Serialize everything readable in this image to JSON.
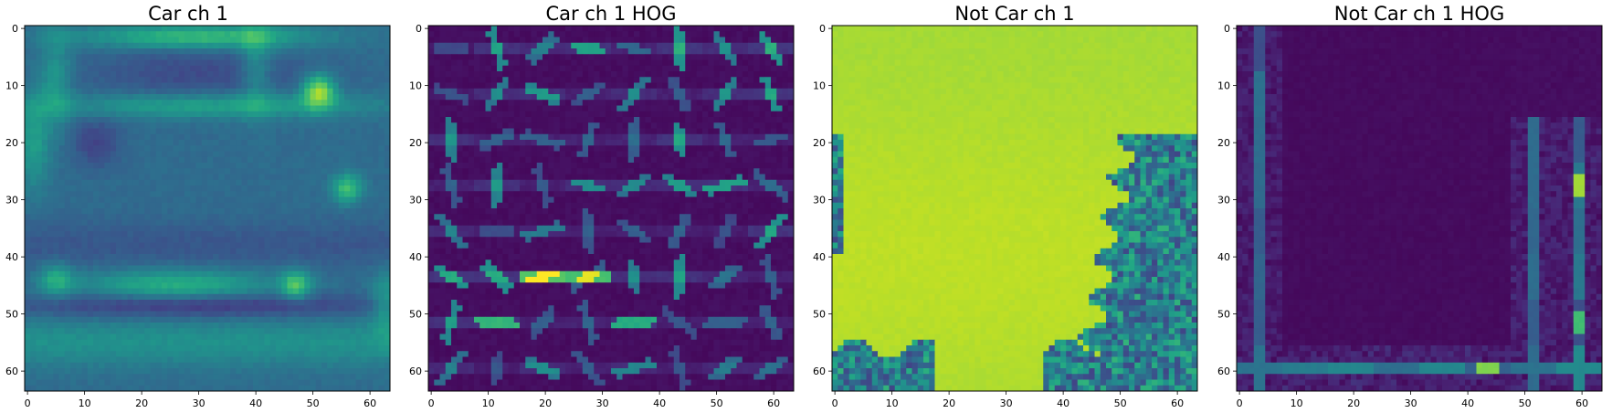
{
  "chart_data": [
    {
      "type": "heatmap",
      "title": "Car ch 1",
      "colormap": "viridis",
      "xlim": [
        0,
        63
      ],
      "ylim": [
        63,
        0
      ],
      "xticks": [
        0,
        10,
        20,
        30,
        40,
        50,
        60
      ],
      "yticks": [
        0,
        10,
        20,
        30,
        40,
        50,
        60
      ],
      "xtick_labels": [
        "0",
        "10",
        "20",
        "30",
        "40",
        "50",
        "60"
      ],
      "ytick_labels": [
        "0",
        "10",
        "20",
        "30",
        "40",
        "50",
        "60"
      ],
      "grid": false,
      "description": "Blurred grayscale image of the rear of a car: bright roof edge and window outline, bright highlight near (51,11), bright lights near (56,28) and (47,45), bright bumper band around row 45, mostly mid-teal body."
    },
    {
      "type": "heatmap",
      "title": "Car ch 1 HOG",
      "colormap": "viridis",
      "xlim": [
        0,
        63
      ],
      "ylim": [
        63,
        0
      ],
      "xticks": [
        0,
        10,
        20,
        30,
        40,
        50,
        60
      ],
      "yticks": [
        0,
        10,
        20,
        30,
        40,
        50,
        60
      ],
      "xtick_labels": [
        "0",
        "10",
        "20",
        "30",
        "40",
        "50",
        "60"
      ],
      "ytick_labels": [
        "0",
        "10",
        "20",
        "30",
        "40",
        "50",
        "60"
      ],
      "grid": false,
      "description": "HOG visualization with 8x8 cells on dark purple background; strongest horizontal gradients (yellow) near rows 43-44 at x 20-30."
    },
    {
      "type": "heatmap",
      "title": "Not Car ch 1",
      "colormap": "viridis",
      "xlim": [
        0,
        63
      ],
      "ylim": [
        63,
        0
      ],
      "xticks": [
        0,
        10,
        20,
        30,
        40,
        50,
        60
      ],
      "yticks": [
        0,
        10,
        20,
        30,
        40,
        50,
        60
      ],
      "xtick_labels": [
        "0",
        "10",
        "20",
        "30",
        "40",
        "50",
        "60"
      ],
      "ytick_labels": [
        "0",
        "10",
        "20",
        "30",
        "40",
        "50",
        "60"
      ],
      "grid": false,
      "description": "Mostly bright yellow-green uniform region with dark textured vegetation-like areas along the right edge (x>50, y>20) and the bottom (y>55)."
    },
    {
      "type": "heatmap",
      "title": "Not Car ch 1 HOG",
      "colormap": "viridis",
      "xlim": [
        0,
        63
      ],
      "ylim": [
        63,
        0
      ],
      "xticks": [
        0,
        10,
        20,
        30,
        40,
        50,
        60
      ],
      "yticks": [
        0,
        10,
        20,
        30,
        40,
        50,
        60
      ],
      "xtick_labels": [
        "0",
        "10",
        "20",
        "30",
        "40",
        "50",
        "60"
      ],
      "ytick_labels": [
        "0",
        "10",
        "20",
        "30",
        "40",
        "50",
        "60"
      ],
      "grid": false,
      "description": "HOG visualization with gradients concentrated in left column (x~4), right columns (x~52-60) and bottom row (y~59); strongest near (60,28) and (43,59)."
    }
  ]
}
